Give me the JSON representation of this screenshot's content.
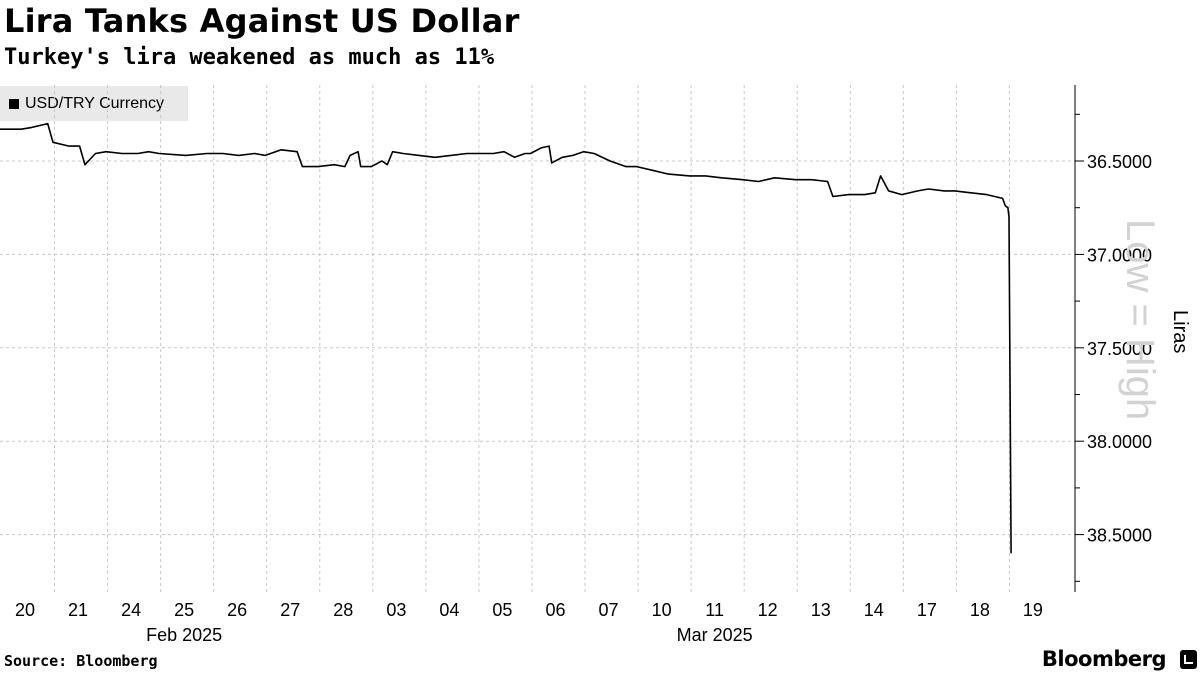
{
  "header": {
    "title": "Lira Tanks Against US Dollar",
    "subtitle": "Turkey's lira weakened as much as 11%"
  },
  "footer": {
    "source": "Source: Bloomberg",
    "brand": "Bloomberg"
  },
  "chart_data": {
    "type": "line",
    "title": "Lira Tanks Against US Dollar",
    "subtitle": "Turkey's lira weakened as much as 11%",
    "ylabel": "Liras",
    "axis_watermark": "Low = High",
    "y_axis_inverted": true,
    "y_axis_position": "right",
    "ylim": [
      36.0,
      38.75
    ],
    "y_ticks": [
      "36.5000",
      "37.0000",
      "37.5000",
      "38.0000",
      "38.5000"
    ],
    "y_tick_values": [
      36.5,
      37.0,
      37.5,
      38.0,
      38.5
    ],
    "x_ticks": [
      "20",
      "21",
      "24",
      "25",
      "26",
      "27",
      "28",
      "03",
      "04",
      "05",
      "06",
      "07",
      "10",
      "11",
      "12",
      "13",
      "14",
      "17",
      "18",
      "19"
    ],
    "x_groups": [
      {
        "label": "Feb 2025",
        "start": 0,
        "end": 6
      },
      {
        "label": "Mar 2025",
        "start": 7,
        "end": 19
      }
    ],
    "grid": true,
    "legend_position": "top-left",
    "line_color": "#000000",
    "series": [
      {
        "name": "USD/TRY Currency",
        "points": [
          [
            0.0,
            36.33
          ],
          [
            0.4,
            36.33
          ],
          [
            0.6,
            36.32
          ],
          [
            0.9,
            36.3
          ],
          [
            1.0,
            36.4
          ],
          [
            1.3,
            36.42
          ],
          [
            1.5,
            36.42
          ],
          [
            1.6,
            36.52
          ],
          [
            1.8,
            36.46
          ],
          [
            2.0,
            36.45
          ],
          [
            2.3,
            36.46
          ],
          [
            2.6,
            36.46
          ],
          [
            2.8,
            36.45
          ],
          [
            3.0,
            36.46
          ],
          [
            3.5,
            36.47
          ],
          [
            3.9,
            36.46
          ],
          [
            4.2,
            36.46
          ],
          [
            4.5,
            36.47
          ],
          [
            4.8,
            36.46
          ],
          [
            5.0,
            36.47
          ],
          [
            5.3,
            36.44
          ],
          [
            5.6,
            36.45
          ],
          [
            5.7,
            36.53
          ],
          [
            5.9,
            36.53
          ],
          [
            6.0,
            36.53
          ],
          [
            6.3,
            36.52
          ],
          [
            6.5,
            36.53
          ],
          [
            6.6,
            36.47
          ],
          [
            6.75,
            36.45
          ],
          [
            6.8,
            36.53
          ],
          [
            7.0,
            36.53
          ],
          [
            7.2,
            36.5
          ],
          [
            7.3,
            36.52
          ],
          [
            7.4,
            36.45
          ],
          [
            7.6,
            36.46
          ],
          [
            7.9,
            36.47
          ],
          [
            8.2,
            36.48
          ],
          [
            8.5,
            36.47
          ],
          [
            8.8,
            36.46
          ],
          [
            9.0,
            36.46
          ],
          [
            9.3,
            36.46
          ],
          [
            9.5,
            36.45
          ],
          [
            9.7,
            36.48
          ],
          [
            9.9,
            36.46
          ],
          [
            10.0,
            36.46
          ],
          [
            10.2,
            36.43
          ],
          [
            10.35,
            36.42
          ],
          [
            10.4,
            36.51
          ],
          [
            10.6,
            36.48
          ],
          [
            10.8,
            36.47
          ],
          [
            11.0,
            36.45
          ],
          [
            11.2,
            36.46
          ],
          [
            11.5,
            36.5
          ],
          [
            11.8,
            36.53
          ],
          [
            12.0,
            36.53
          ],
          [
            12.3,
            36.55
          ],
          [
            12.6,
            36.57
          ],
          [
            13.0,
            36.58
          ],
          [
            13.3,
            36.58
          ],
          [
            13.6,
            36.59
          ],
          [
            14.0,
            36.6
          ],
          [
            14.3,
            36.61
          ],
          [
            14.6,
            36.59
          ],
          [
            15.0,
            36.6
          ],
          [
            15.3,
            36.6
          ],
          [
            15.6,
            36.61
          ],
          [
            15.7,
            36.69
          ],
          [
            16.0,
            36.68
          ],
          [
            16.3,
            36.68
          ],
          [
            16.5,
            36.67
          ],
          [
            16.6,
            36.58
          ],
          [
            16.75,
            36.66
          ],
          [
            17.0,
            36.68
          ],
          [
            17.3,
            36.66
          ],
          [
            17.5,
            36.65
          ],
          [
            17.8,
            36.66
          ],
          [
            18.0,
            36.66
          ],
          [
            18.3,
            36.67
          ],
          [
            18.6,
            36.68
          ],
          [
            18.9,
            36.7
          ],
          [
            18.95,
            36.74
          ],
          [
            19.0,
            36.75
          ],
          [
            19.02,
            36.8
          ],
          [
            19.06,
            38.6
          ]
        ]
      }
    ]
  }
}
